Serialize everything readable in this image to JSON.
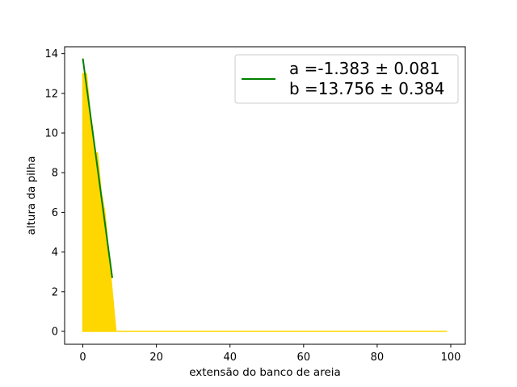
{
  "chart_data": {
    "type": "area",
    "title": "",
    "xlabel": "extensão do banco de areia",
    "ylabel": "altura da pilha",
    "xlim": [
      -4.95,
      103.95
    ],
    "ylim": [
      -0.65,
      14.35
    ],
    "xticks": [
      0,
      20,
      40,
      60,
      80,
      100
    ],
    "yticks": [
      0,
      2,
      4,
      6,
      8,
      10,
      12,
      14
    ],
    "grid": false,
    "legend_position": "upper right",
    "series": [
      {
        "kind": "area",
        "color": "#ffd700",
        "x": [
          0,
          1,
          2,
          3,
          4,
          5,
          6,
          7,
          8,
          9,
          10,
          20,
          40,
          60,
          80,
          99
        ],
        "y": [
          13,
          13,
          11,
          9,
          9,
          7,
          6,
          4,
          2,
          0,
          0,
          0,
          0,
          0,
          0,
          0
        ]
      },
      {
        "kind": "line",
        "color": "#008000",
        "x": [
          0,
          8
        ],
        "y": [
          13.756,
          2.692
        ]
      }
    ],
    "legend": [
      {
        "series": 1,
        "text_line1": "a =-1.383 ± 0.081",
        "text_line2": "b =13.756 ± 0.384"
      }
    ]
  }
}
